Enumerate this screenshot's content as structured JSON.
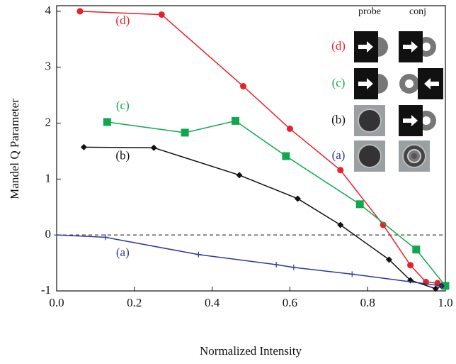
{
  "chart_data": {
    "type": "line",
    "xlabel": "Normalized Intensity",
    "ylabel": "Mandel Q Parameter",
    "xlim": [
      0,
      1
    ],
    "ylim": [
      -1,
      4.1
    ],
    "xticks": [
      {
        "value": 0,
        "label": "0.0"
      },
      {
        "value": 0.2,
        "label": "0.2"
      },
      {
        "value": 0.4,
        "label": "0.4"
      },
      {
        "value": 0.6,
        "label": "0.6"
      },
      {
        "value": 0.8,
        "label": "0.8"
      },
      {
        "value": 1,
        "label": "1.0"
      }
    ],
    "yticks": [
      -1,
      0,
      1,
      2,
      3,
      4
    ],
    "inset_headers": [
      "probe",
      "conj"
    ],
    "series": [
      {
        "name": "(d)",
        "color": "#e8202a",
        "marker": "circle",
        "x": [
          0.06,
          0.27,
          0.48,
          0.6,
          0.73,
          0.84,
          0.91,
          0.95,
          0.98
        ],
        "values": [
          4.0,
          3.94,
          2.66,
          1.9,
          1.16,
          0.18,
          -0.54,
          -0.84,
          -0.86
        ]
      },
      {
        "name": "(c)",
        "color": "#10a84f",
        "marker": "square",
        "x": [
          0.13,
          0.33,
          0.46,
          0.59,
          0.78,
          0.925,
          1.0
        ],
        "values": [
          2.02,
          1.83,
          2.04,
          1.41,
          0.55,
          -0.26,
          -0.91
        ]
      },
      {
        "name": "(b)",
        "color": "#111111",
        "marker": "diamond",
        "x": [
          0.07,
          0.25,
          0.47,
          0.62,
          0.73,
          0.855,
          0.91,
          0.975,
          0.99
        ],
        "values": [
          1.57,
          1.56,
          1.07,
          0.65,
          0.18,
          -0.44,
          -0.81,
          -0.96,
          -0.91
        ]
      },
      {
        "name": "(a)",
        "color": "#2b3a9a",
        "marker": "plus",
        "x": [
          0,
          0.125,
          0.365,
          0.565,
          0.61,
          0.76,
          0.99
        ],
        "values": [
          0,
          -0.04,
          -0.35,
          -0.53,
          -0.58,
          -0.7,
          -0.91
        ]
      }
    ]
  }
}
